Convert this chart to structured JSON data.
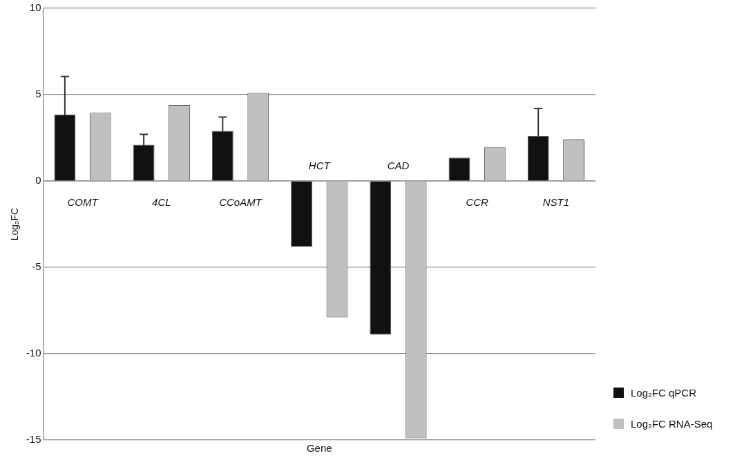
{
  "chart_data": {
    "type": "bar",
    "xlabel": "Gene",
    "ylabel": "Log₂FC",
    "categories": [
      "COMT",
      "4CL",
      "CCoAMT",
      "HCT",
      "CAD",
      "CCR",
      "NST1"
    ],
    "series": [
      {
        "name": "Log₂FC qPCR",
        "color": "#111111",
        "values": [
          3.85,
          2.1,
          2.9,
          -3.8,
          -8.9,
          1.35,
          2.6
        ],
        "errors": [
          2.2,
          0.6,
          0.8,
          null,
          null,
          null,
          1.6
        ]
      },
      {
        "name": "Log₂FC RNA-Seq",
        "color": "#c0c0c0",
        "values": [
          3.95,
          4.4,
          5.1,
          -7.9,
          -14.9,
          1.95,
          2.4
        ]
      }
    ],
    "ylim": [
      -15,
      10
    ],
    "yticks": [
      -15,
      -10,
      -5,
      0,
      5,
      10
    ],
    "grid": "y",
    "legend": "bottom right"
  }
}
